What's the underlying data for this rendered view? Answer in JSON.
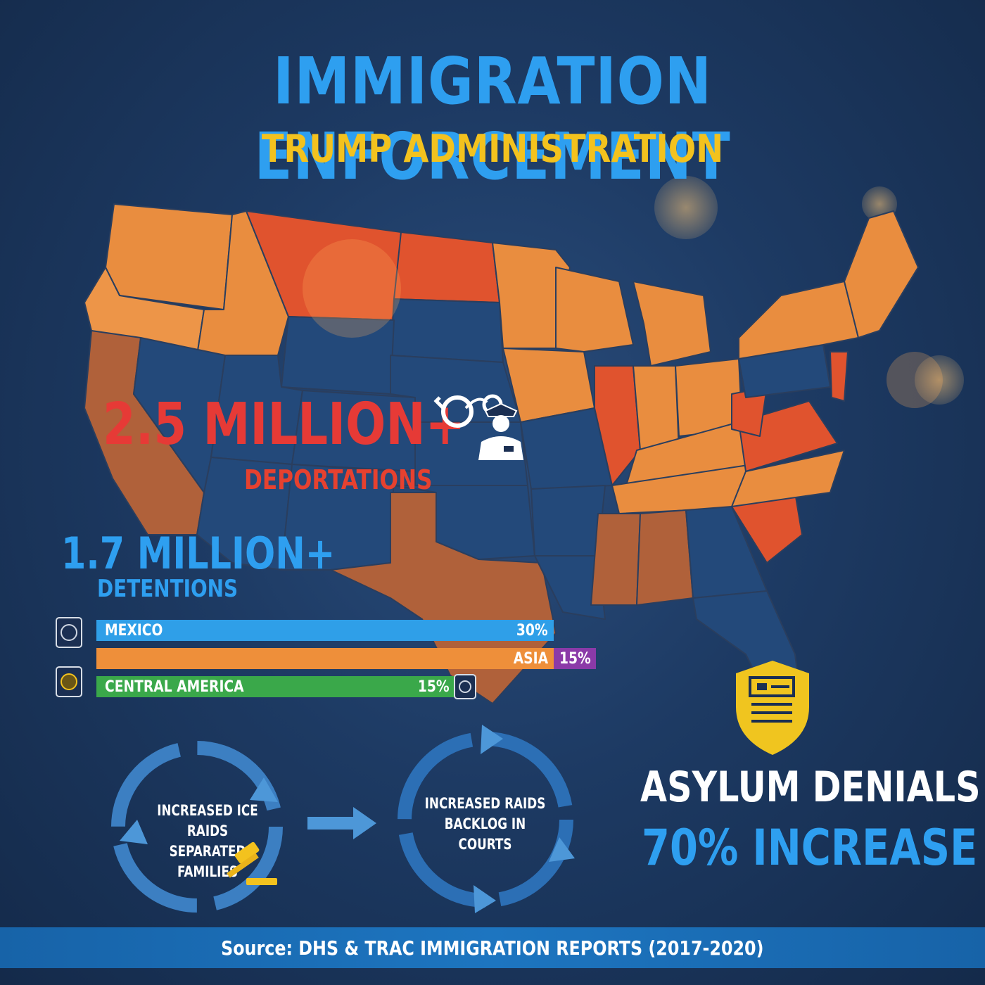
{
  "header": {
    "title": "IMMIGRATION ENFORCEMENT",
    "subtitle": "TRUMP ADMINISTRATION"
  },
  "stats": {
    "deportations_value": "2.5 MILLION+",
    "deportations_label": "DEPORTATIONS",
    "detentions_value": "1.7 MILLION+",
    "detentions_label": "DETENTIONS"
  },
  "origin_bars": [
    {
      "label": "MEXICO",
      "value": "30%",
      "color": "#2f9fe8"
    },
    {
      "label": "ASIA",
      "value": "15%",
      "color": "#ee8f3a"
    },
    {
      "label": "CENTRAL AMERICA",
      "value": "15%",
      "color": "#3aa84a"
    }
  ],
  "cycles": [
    {
      "line1": "INCREASED ICE RAIDS",
      "line2": "SEPARATED FAMILIES"
    },
    {
      "line1": "INCREASED RAIDS",
      "line2": "BACKLOG IN COURTS"
    }
  ],
  "asylum": {
    "title": "ASYLUM DENIALS",
    "stat": "70% INCREASE"
  },
  "footer": {
    "source": "Source: DHS & TRAC IMMIGRATION REPORTS (2017-2020)"
  },
  "icons": [
    "handcuffs-icon",
    "officer-icon",
    "gavel-icon",
    "shield-document-icon",
    "arrow-right-icon",
    "cycle-arrows-icon",
    "passport-icon"
  ],
  "colors": {
    "background": "#1d3a63",
    "title": "#2e9ff0",
    "subtitle": "#f3c21e",
    "deportations": "#e63a36",
    "map_orange": "#e98d3f",
    "map_red": "#e0532e",
    "map_blue": "#23497a",
    "map_brown": "#b0613a"
  }
}
